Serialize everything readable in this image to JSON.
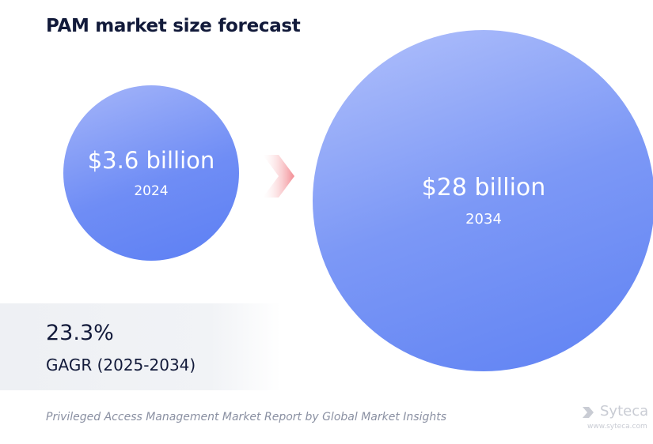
{
  "header": {
    "title": "PAM market size forecast"
  },
  "chart_data": {
    "type": "bubble",
    "title": "PAM market size forecast",
    "series": [
      {
        "label": "$3.6 billion",
        "year": "2024",
        "value_billion_usd": 3.6
      },
      {
        "label": "$28 billion",
        "year": "2034",
        "value_billion_usd": 28
      }
    ],
    "cagr": {
      "value": "23.3%",
      "label": "GAGR (2025-2034)"
    }
  },
  "footer": {
    "source": "Privileged Access Management Market Report by Global Market Insights",
    "brand": "Syteca",
    "brand_url": "www.syteca.com"
  },
  "colors": {
    "bubble_light": "#a6b6f9",
    "bubble_dark": "#5c7ff3",
    "arrow": "#f4a3a8",
    "title_text": "#121a3a"
  }
}
